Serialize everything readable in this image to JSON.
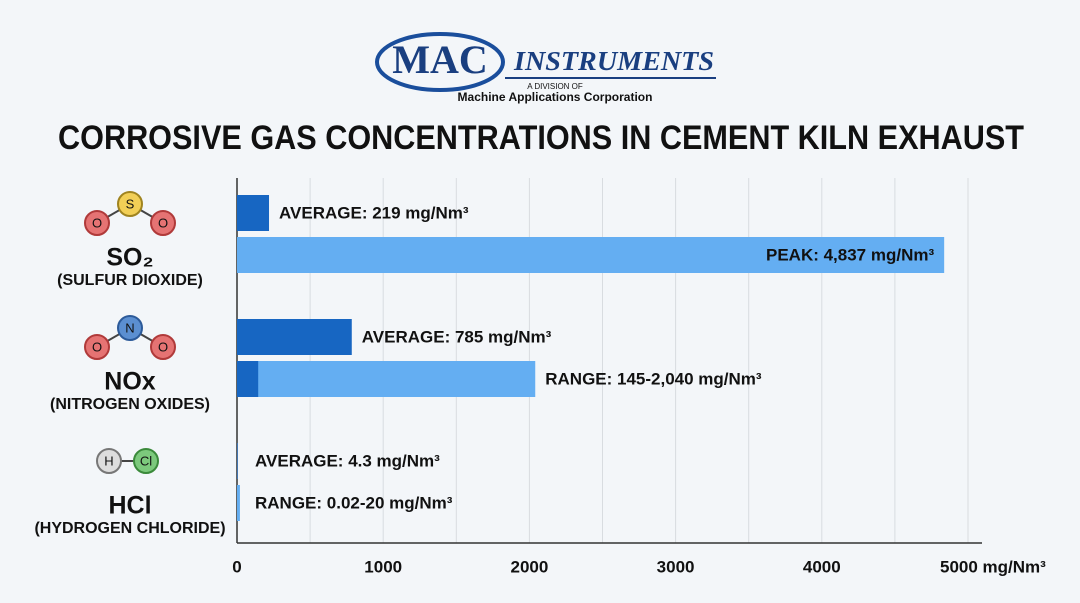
{
  "header": {
    "logo_mark": "MAC",
    "logo_text": "INSTRUMENTS",
    "division": "A DIVISION OF",
    "company": "Machine Applications Corporation"
  },
  "chart_data": {
    "type": "bar",
    "orientation": "horizontal",
    "title": "CORROSIVE GAS CONCENTRATIONS IN CEMENT KILN EXHAUST",
    "xlim": [
      0,
      5000
    ],
    "xticks": [
      0,
      1000,
      2000,
      3000,
      4000,
      {
        "value": 5000,
        "label": "5000 mg/Nm³"
      }
    ],
    "xminor": [
      500,
      1500,
      2500,
      3500,
      4500
    ],
    "grid": true,
    "groups": [
      {
        "formula": "SO₂",
        "name": "(SULFUR DIOXIDE)",
        "atoms": [
          "O",
          "S",
          "O"
        ],
        "bars": [
          {
            "kind": "average",
            "values": [
              219
            ],
            "value_label": "AVERAGE: 219 mg/Nm³",
            "color": "#1766c2"
          },
          {
            "kind": "peak",
            "values": [
              4837
            ],
            "value_label": "PEAK: 4,837 mg/Nm³",
            "color": "#64aef2"
          }
        ]
      },
      {
        "formula": "NOx",
        "name": "(NITROGEN OXIDES)",
        "atoms": [
          "O",
          "N",
          "O"
        ],
        "bars": [
          {
            "kind": "average",
            "values": [
              785
            ],
            "value_label": "AVERAGE: 785 mg/Nm³",
            "color": "#1766c2"
          },
          {
            "kind": "range",
            "values": [
              145,
              2040
            ],
            "value_label": "RANGE: 145-2,040 mg/Nm³",
            "color": "#64aef2"
          }
        ]
      },
      {
        "formula": "HCl",
        "name": "(HYDROGEN CHLORIDE)",
        "atoms": [
          "H",
          "Cl"
        ],
        "bars": [
          {
            "kind": "average",
            "values": [
              4.3
            ],
            "value_label": "AVERAGE: 4.3 mg/Nm³",
            "color": "#1766c2"
          },
          {
            "kind": "range",
            "values": [
              0.02,
              20
            ],
            "value_label": "RANGE: 0.02-20 mg/Nm³",
            "color": "#64aef2"
          }
        ]
      }
    ]
  }
}
